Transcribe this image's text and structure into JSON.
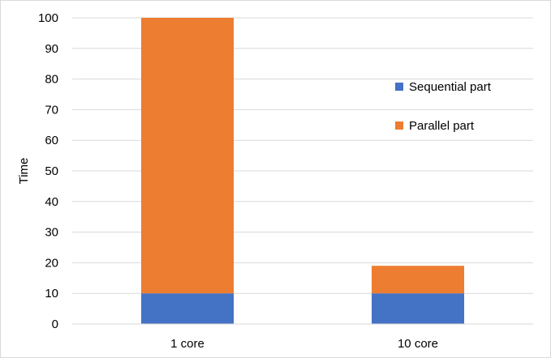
{
  "chart_data": {
    "type": "bar",
    "stacked": true,
    "title": "",
    "xlabel": "",
    "ylabel": "Time",
    "categories": [
      "1 core",
      "10 core"
    ],
    "series": [
      {
        "name": "Sequential part",
        "values": [
          10,
          10
        ],
        "color": "#4472c4"
      },
      {
        "name": "Parallel part",
        "values": [
          90,
          9
        ],
        "color": "#ed7d31"
      }
    ],
    "ylim": [
      0,
      100
    ],
    "yticks": [
      0,
      10,
      20,
      30,
      40,
      50,
      60,
      70,
      80,
      90,
      100
    ],
    "grid": true,
    "legend_position": "right"
  }
}
